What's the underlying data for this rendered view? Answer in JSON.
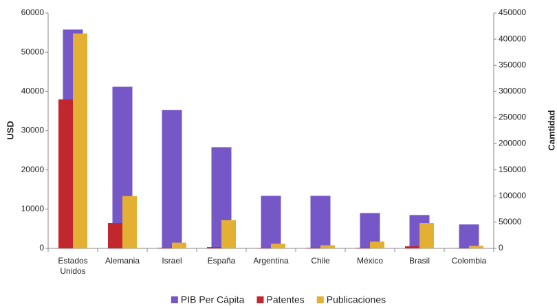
{
  "chart_data": {
    "type": "bar",
    "y_label": "USD",
    "y2_label": "Camtidad",
    "categories": [
      "Estados Unidos",
      "Alemania",
      "Israel",
      "España",
      "Argentina",
      "Chile",
      "México",
      "Brasil",
      "Colombia"
    ],
    "series": [
      {
        "name": "PIB Per Cápita",
        "color": "#7657c8",
        "values": [
          55800,
          41200,
          35300,
          25800,
          13400,
          13400,
          9000,
          8500,
          6100
        ]
      },
      {
        "name": "Patentes",
        "color": "#c1272d",
        "axis": "y2",
        "values": [
          285000,
          48500,
          1000,
          2500,
          600,
          1000,
          1000,
          4000,
          500
        ]
      },
      {
        "name": "Publicaciones",
        "color": "#e3b034",
        "axis": "y2",
        "values": [
          411000,
          100000,
          11000,
          53800,
          9000,
          6000,
          13000,
          48500,
          5000
        ]
      }
    ],
    "ylim": [
      0,
      60000
    ],
    "yticks": [
      0,
      10000,
      20000,
      30000,
      40000,
      50000,
      60000
    ],
    "y2lim": [
      0,
      450000
    ],
    "y2ticks": [
      0,
      50000,
      100000,
      150000,
      200000,
      250000,
      300000,
      350000,
      400000,
      450000
    ],
    "grid": false,
    "legend": "bottom"
  }
}
